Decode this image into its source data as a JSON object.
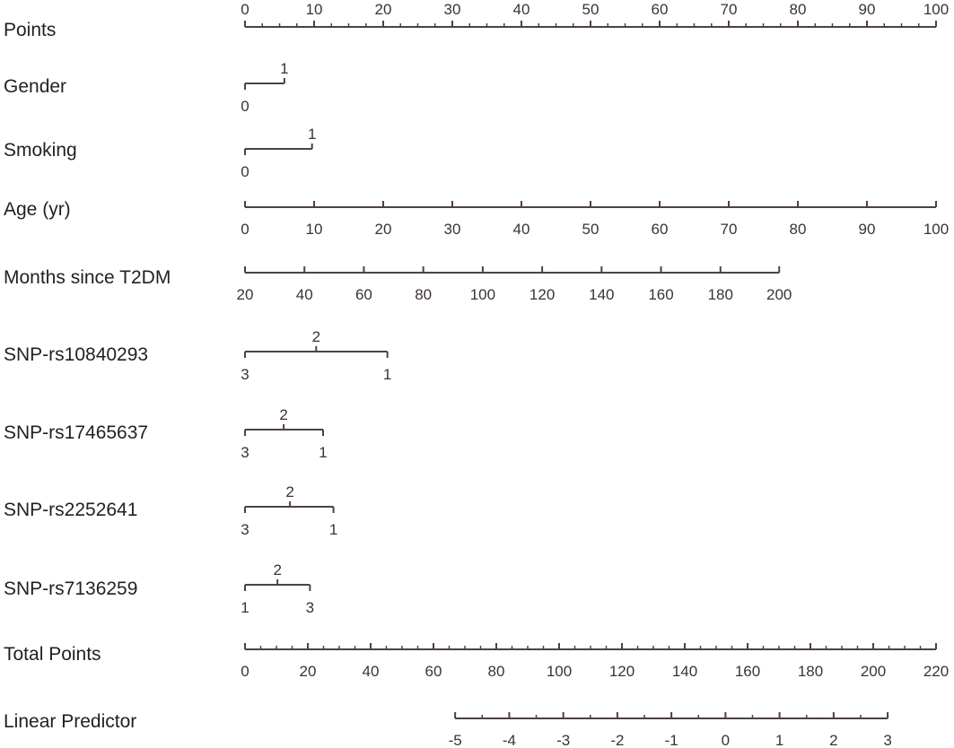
{
  "chart_data": {
    "type": "nomogram",
    "colors": {
      "line": "#4d423d",
      "text": "#231f20"
    },
    "rows": [
      {
        "name": "Points",
        "kind": "scale",
        "ticks": [
          0,
          10,
          20,
          30,
          40,
          50,
          60,
          70,
          80,
          90,
          100
        ],
        "tick_labels": [
          "0",
          "10",
          "20",
          "30",
          "40",
          "50",
          "60",
          "70",
          "80",
          "90",
          "100"
        ],
        "points": [
          0,
          10,
          20,
          30,
          40,
          50,
          60,
          70,
          80,
          90,
          100
        ],
        "minor_step_points": 2.5,
        "labels_above": true
      },
      {
        "name": "Gender",
        "kind": "categorical",
        "levels": [
          {
            "label": "0",
            "points": 0,
            "pos": "below"
          },
          {
            "label": "1",
            "points": 5.7,
            "pos": "above"
          }
        ]
      },
      {
        "name": "Smoking",
        "kind": "categorical",
        "levels": [
          {
            "label": "0",
            "points": 0,
            "pos": "below"
          },
          {
            "label": "1",
            "points": 9.7,
            "pos": "above"
          }
        ]
      },
      {
        "name": "Age (yr)",
        "kind": "scale",
        "tick_labels": [
          "0",
          "10",
          "20",
          "30",
          "40",
          "50",
          "60",
          "70",
          "80",
          "90",
          "100"
        ],
        "points": [
          0,
          10,
          20,
          30,
          40,
          50,
          60,
          70,
          80,
          90,
          100
        ]
      },
      {
        "name": "Months since T2DM",
        "kind": "scale",
        "tick_labels": [
          "20",
          "40",
          "60",
          "80",
          "100",
          "120",
          "140",
          "160",
          "180",
          "200"
        ],
        "points": [
          0,
          8.6,
          17.2,
          25.8,
          34.4,
          43.0,
          51.6,
          60.2,
          68.8,
          77.3
        ]
      },
      {
        "name": "SNP-rs10840293",
        "kind": "categorical",
        "levels": [
          {
            "label": "3",
            "points": 0,
            "pos": "below"
          },
          {
            "label": "2",
            "points": 10.3,
            "pos": "above"
          },
          {
            "label": "1",
            "points": 20.6,
            "pos": "below"
          }
        ]
      },
      {
        "name": "SNP-rs17465637",
        "kind": "categorical",
        "levels": [
          {
            "label": "3",
            "points": 0,
            "pos": "below"
          },
          {
            "label": "2",
            "points": 5.6,
            "pos": "above"
          },
          {
            "label": "1",
            "points": 11.3,
            "pos": "below"
          }
        ]
      },
      {
        "name": "SNP-rs2252641",
        "kind": "categorical",
        "levels": [
          {
            "label": "3",
            "points": 0,
            "pos": "below"
          },
          {
            "label": "2",
            "points": 6.5,
            "pos": "above"
          },
          {
            "label": "1",
            "points": 12.8,
            "pos": "below"
          }
        ]
      },
      {
        "name": "SNP-rs7136259",
        "kind": "categorical",
        "levels": [
          {
            "label": "1",
            "points": 0,
            "pos": "below"
          },
          {
            "label": "2",
            "points": 4.7,
            "pos": "above"
          },
          {
            "label": "3",
            "points": 9.4,
            "pos": "below"
          }
        ]
      },
      {
        "name": "Total Points",
        "kind": "total",
        "tick_labels": [
          "0",
          "20",
          "40",
          "60",
          "80",
          "100",
          "120",
          "140",
          "160",
          "180",
          "200",
          "220"
        ],
        "values": [
          0,
          20,
          40,
          60,
          80,
          100,
          120,
          140,
          160,
          180,
          200,
          220
        ],
        "minor_step": 5,
        "range": [
          0,
          220
        ]
      },
      {
        "name": "Linear Predictor",
        "kind": "lp",
        "tick_labels": [
          "-5",
          "-4",
          "-3",
          "-2",
          "-1",
          "0",
          "1",
          "2",
          "3"
        ],
        "values": [
          -5,
          -4,
          -3,
          -2,
          -1,
          0,
          1,
          2,
          3
        ],
        "total_points_at": [
          66.9,
          204.6
        ],
        "minor_step": 0.5
      }
    ]
  }
}
